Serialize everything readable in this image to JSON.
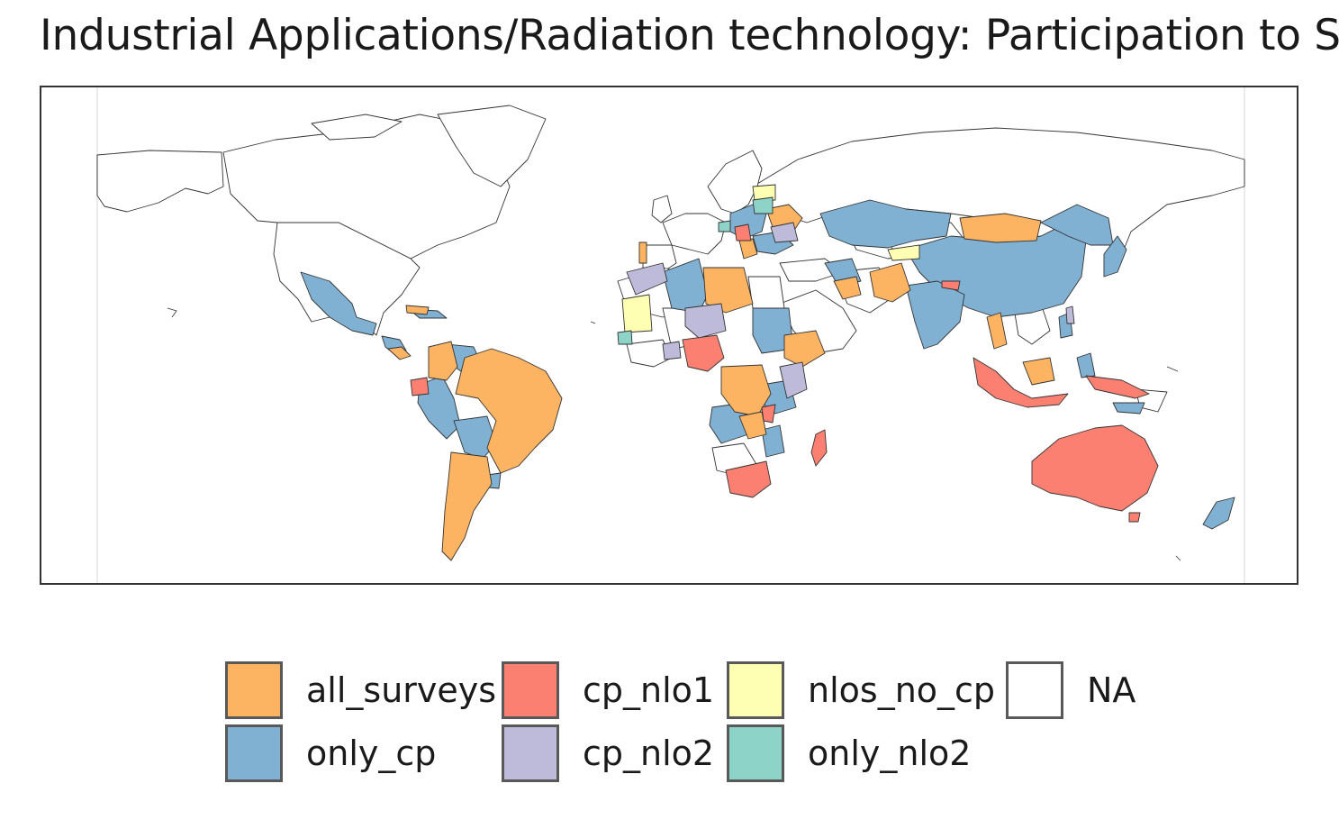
{
  "title": "Industrial Applications/Radiation technology: Participation to S",
  "legend": {
    "items": [
      {
        "key": "all_surveys",
        "label": "all_surveys",
        "color": "#FDB462"
      },
      {
        "key": "only_cp",
        "label": "only_cp",
        "color": "#80B1D3"
      },
      {
        "key": "cp_nlo1",
        "label": "cp_nlo1",
        "color": "#FB8072"
      },
      {
        "key": "cp_nlo2",
        "label": "cp_nlo2",
        "color": "#BEBADA"
      },
      {
        "key": "nlos_no_cp",
        "label": "nlos_no_cp",
        "color": "#FFFFB3"
      },
      {
        "key": "only_nlo2",
        "label": "only_nlo2",
        "color": "#8DD3C7"
      },
      {
        "key": "na",
        "label": "NA",
        "color": "#FFFFFF"
      }
    ]
  },
  "map": {
    "projection": "equirectangular",
    "border_color": "#333333",
    "na_fill": "#FFFFFF"
  }
}
